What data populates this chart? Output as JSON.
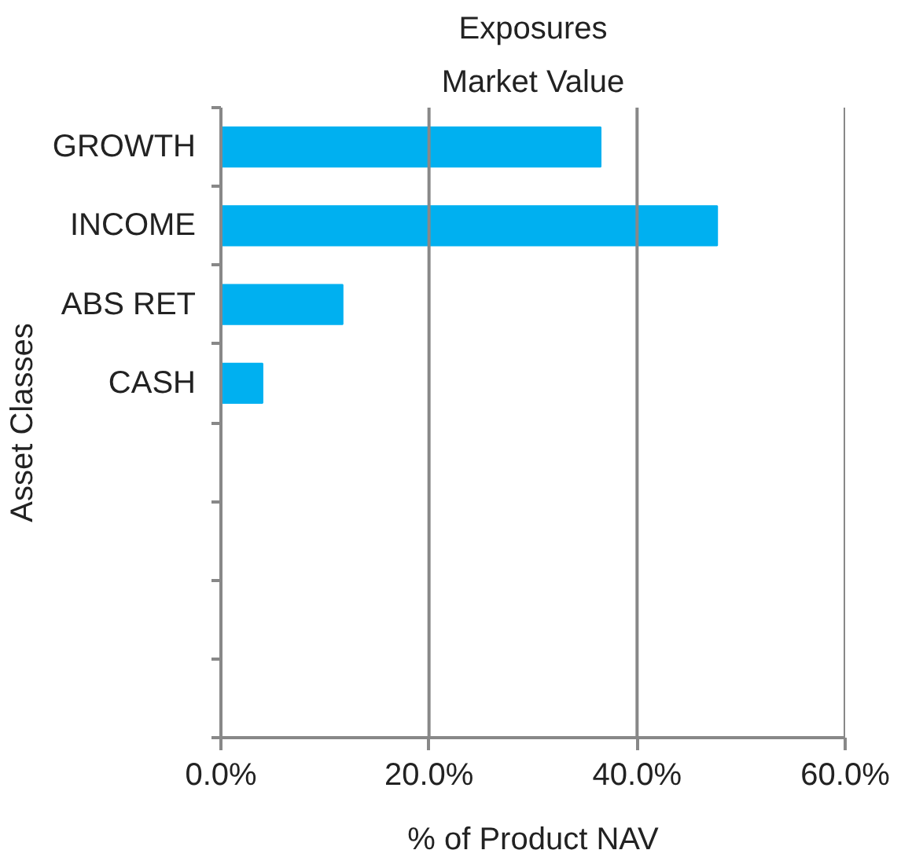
{
  "chart_data": {
    "type": "bar",
    "orientation": "horizontal",
    "title": "Exposures",
    "subtitle": "Market Value",
    "xlabel": "% of Product NAV",
    "ylabel": "Asset Classes",
    "categories": [
      "GROWTH",
      "INCOME",
      "ABS RET",
      "CASH",
      null,
      null,
      null,
      null
    ],
    "values": [
      36.5,
      47.7,
      11.7,
      4.0,
      null,
      null,
      null,
      null
    ],
    "color": "#00b0f0",
    "xlim": [
      0,
      60
    ],
    "xticks": [
      {
        "value": 0,
        "label": "0.0%"
      },
      {
        "value": 20,
        "label": "20.0%"
      },
      {
        "value": 40,
        "label": "40.0%"
      },
      {
        "value": 60,
        "label": "60.0%"
      }
    ],
    "grid": "x"
  }
}
